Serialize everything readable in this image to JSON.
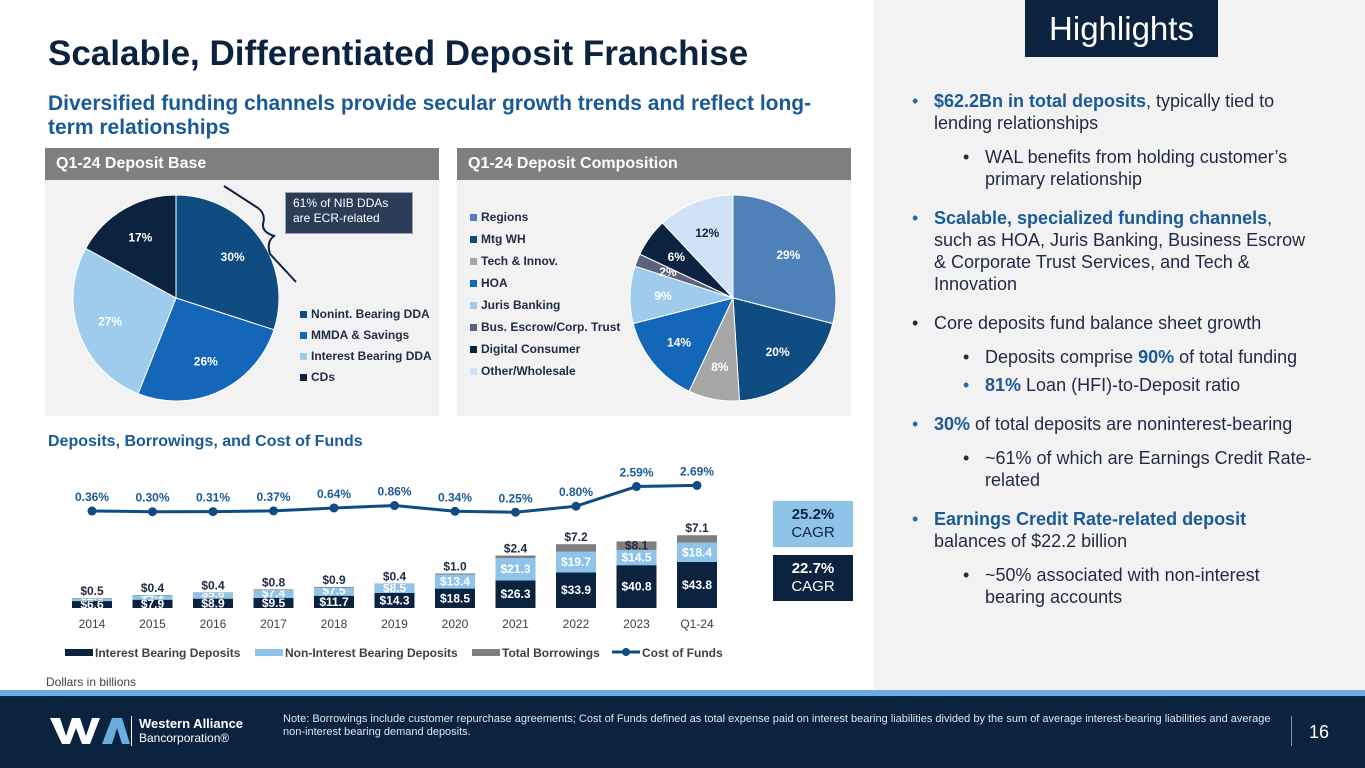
{
  "header": {
    "title": "Scalable, Differentiated Deposit Franchise",
    "subtitle": "Diversified funding channels provide secular growth trends and reflect long-term relationships",
    "highlights_label": "Highlights"
  },
  "colors": {
    "navy": "#0c2340",
    "blue": "#1a5a96",
    "light_blue": "#9fcbec",
    "gray": "#7f7f7f"
  },
  "deposit_base": {
    "heading": "Q1-24 Deposit Base",
    "callout": "61% of NIB DDAs are ECR-related",
    "legend": [
      "Nonint. Bearing DDA",
      "MMDA & Savings",
      "Interest Bearing DDA",
      "CDs"
    ]
  },
  "deposit_composition": {
    "heading": "Q1-24 Deposit Composition",
    "legend": [
      "Regions",
      "Mtg WH",
      "Tech & Innov.",
      "HOA",
      "Juris Banking",
      "Bus. Escrow/Corp. Trust",
      "Digital Consumer",
      "Other/Wholesale"
    ]
  },
  "funds_chart": {
    "heading": "Deposits, Borrowings, and Cost of Funds",
    "legend": [
      "Interest Bearing Deposits",
      "Non-Interest Bearing Deposits",
      "Total Borrowings",
      "Cost of Funds"
    ],
    "cagr_nib": {
      "value": "25.2%",
      "label": "CAGR"
    },
    "cagr_ib": {
      "value": "22.7%",
      "label": "CAGR"
    },
    "note": "Dollars in billions"
  },
  "chart_data": [
    {
      "type": "pie",
      "title": "Q1-24 Deposit Base",
      "labels": [
        "Nonint. Bearing DDA",
        "MMDA & Savings",
        "Interest Bearing DDA",
        "CDs"
      ],
      "values": [
        30,
        26,
        27,
        17
      ],
      "value_labels": [
        "30%",
        "26%",
        "27%",
        "17%"
      ],
      "colors": [
        "#0f4c81",
        "#1366b8",
        "#9fcbec",
        "#0c2340"
      ]
    },
    {
      "type": "pie",
      "title": "Q1-24 Deposit Composition",
      "labels": [
        "Regions",
        "Mtg WH",
        "Tech & Innov.",
        "HOA",
        "Juris Banking",
        "Bus. Escrow/Corp. Trust",
        "Digital Consumer",
        "Other/Wholesale"
      ],
      "values": [
        29,
        20,
        8,
        14,
        9,
        2,
        6,
        12
      ],
      "value_labels": [
        "29%",
        "20%",
        "8%",
        "14%",
        "9%",
        "2%",
        "6%",
        "12%"
      ],
      "colors": [
        "#4e81b8",
        "#0f4c81",
        "#a6a6a6",
        "#1366b8",
        "#9fcbec",
        "#59647a",
        "#0c2340",
        "#cfe3f4"
      ]
    },
    {
      "type": "bar",
      "title": "Deposits, Borrowings, and Cost of Funds",
      "categories": [
        "2014",
        "2015",
        "2016",
        "2017",
        "2018",
        "2019",
        "2020",
        "2021",
        "2022",
        "2023",
        "Q1-24"
      ],
      "series": [
        {
          "name": "Interest Bearing Deposits",
          "values": [
            6.6,
            7.9,
            8.9,
            9.5,
            11.7,
            14.3,
            18.5,
            26.3,
            33.9,
            40.8,
            43.8
          ],
          "labels": [
            "$6.6",
            "$7.9",
            "$8.9",
            "$9.5",
            "$11.7",
            "$14.3",
            "$18.5",
            "$26.3",
            "$33.9",
            "$40.8",
            "$43.8"
          ],
          "color": "#0c2340"
        },
        {
          "name": "Non-Interest Bearing Deposits",
          "values": [
            2.3,
            4.1,
            5.6,
            7.4,
            7.5,
            8.5,
            13.4,
            21.3,
            19.7,
            14.5,
            18.4
          ],
          "labels": [
            "$2.3",
            "$4.1",
            "$5.6",
            "$7.4",
            "$7.5",
            "$8.5",
            "$13.4",
            "$21.3",
            "$19.7",
            "$14.5",
            "$18.4"
          ],
          "color": "#8ec3ea"
        },
        {
          "name": "Total Borrowings",
          "values": [
            0.5,
            0.4,
            0.4,
            0.8,
            0.9,
            0.4,
            1.0,
            2.4,
            7.2,
            8.1,
            7.1
          ],
          "labels": [
            "$0.5",
            "$0.4",
            "$0.4",
            "$0.8",
            "$0.9",
            "$0.4",
            "$1.0",
            "$2.4",
            "$7.2",
            "$8.1",
            "$7.1"
          ],
          "color": "#7f7f7f"
        },
        {
          "name": "Cost of Funds",
          "type": "line",
          "values": [
            0.36,
            0.3,
            0.31,
            0.37,
            0.64,
            0.86,
            0.34,
            0.25,
            0.8,
            2.59,
            2.69
          ],
          "labels": [
            "0.36%",
            "0.30%",
            "0.31%",
            "0.37%",
            "0.64%",
            "0.86%",
            "0.34%",
            "0.25%",
            "0.80%",
            "2.59%",
            "2.69%"
          ],
          "color": "#0f4c81"
        }
      ],
      "legend": "bottom"
    }
  ],
  "highlights": [
    {
      "level": 1,
      "bold": "$62.2Bn in total deposits",
      "text": ", typically tied to lending relationships"
    },
    {
      "level": 2,
      "bold": "",
      "text": "WAL benefits from holding customer’s primary relationship"
    },
    {
      "level": 1,
      "bold": "Scalable, specialized funding channels",
      "text": ", such as HOA, Juris Banking, Business Escrow & Corporate Trust Services, and Tech & Innovation"
    },
    {
      "level": 1,
      "bold": "",
      "text": "Core deposits fund balance sheet growth"
    },
    {
      "level": 2,
      "pre": "Deposits comprise ",
      "bold": "90%",
      "text": " of total funding"
    },
    {
      "level": 2,
      "bold": "81%",
      "text": " Loan (HFI)-to-Deposit ratio"
    },
    {
      "level": 1,
      "bold": "30%",
      "text": " of total deposits are noninterest-bearing"
    },
    {
      "level": 2,
      "bold": "",
      "text": "~61% of which are Earnings Credit Rate-related"
    },
    {
      "level": 1,
      "bold": "Earnings Credit Rate-related deposit",
      "text": " balances of $22.2 billion"
    },
    {
      "level": 2,
      "bold": "",
      "text": "~50% associated with non-interest bearing accounts"
    }
  ],
  "footer": {
    "company_line1": "Western Alliance",
    "company_line2": "Bancorporation®",
    "note": "Note: Borrowings include customer repurchase agreements; Cost of Funds defined as total expense paid on interest bearing liabilities divided by the sum of average interest-bearing liabilities and average non-interest bearing demand deposits.",
    "page_number": "16"
  }
}
